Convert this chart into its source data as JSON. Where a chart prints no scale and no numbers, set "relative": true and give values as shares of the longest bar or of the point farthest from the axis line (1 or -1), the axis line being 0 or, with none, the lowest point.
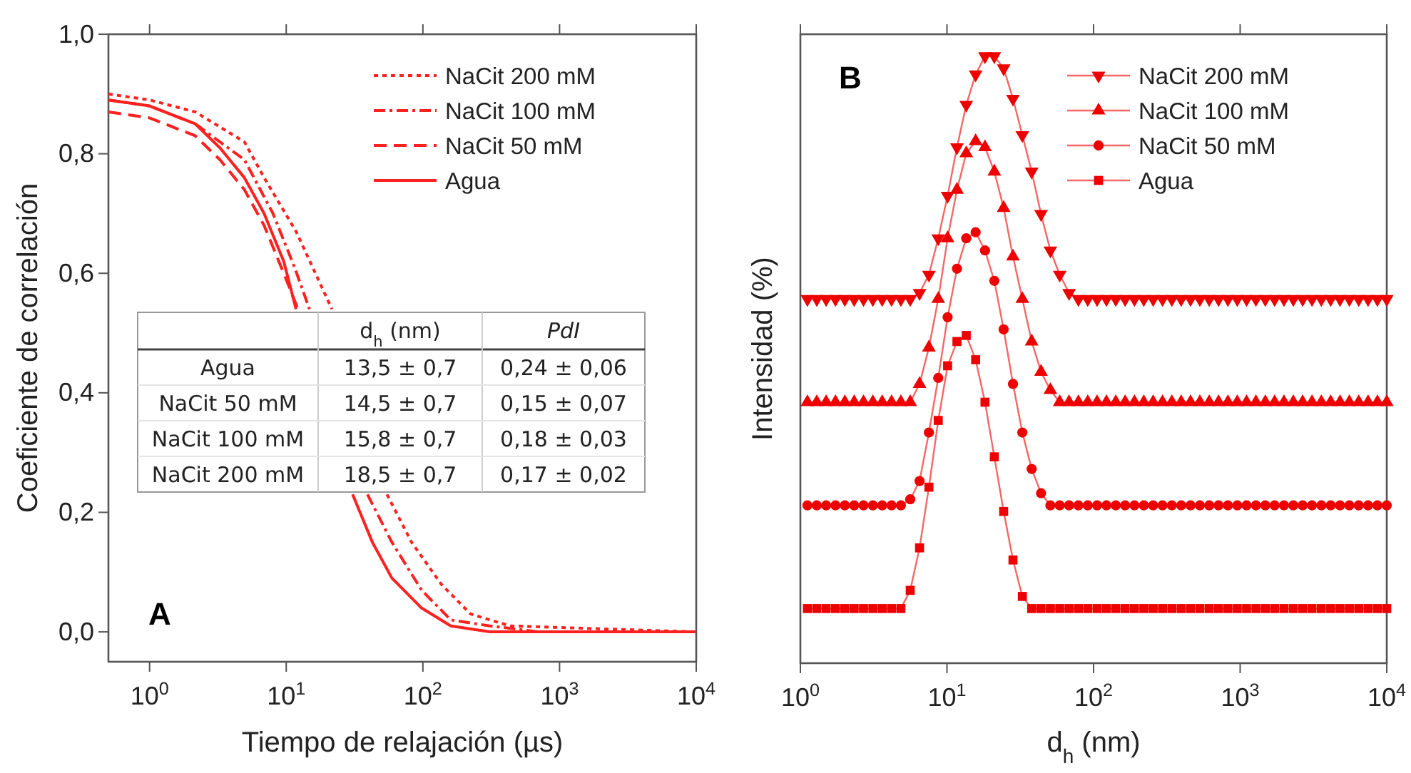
{
  "chart_data": [
    {
      "type": "line",
      "xlabel": "Tiempo de relajación (µs)",
      "ylabel": "Coeficiente de correlación",
      "log": "x",
      "xlim": [
        0.5,
        10000
      ],
      "xticks": [
        {
          "value": 1,
          "label": "10$^{0}$"
        },
        {
          "value": 10,
          "label": "10$^{1}$"
        },
        {
          "value": 100,
          "label": "10$^{2}$"
        },
        {
          "value": 1000,
          "label": "10$^{3}$"
        },
        {
          "value": 10000,
          "label": "10$^{4}$"
        }
      ],
      "ylim": [
        -0.05,
        1.0
      ],
      "yticks": [
        {
          "value": 0,
          "label": "0,0"
        },
        {
          "value": 0.2,
          "label": "0,2"
        },
        {
          "value": 0.4,
          "label": "0,4"
        },
        {
          "value": 0.6,
          "label": "0,6"
        },
        {
          "value": 0.8,
          "label": "0,8"
        },
        {
          "value": 1.0,
          "label": "1,0"
        }
      ],
      "legend": "top right",
      "annotations": [
        "A"
      ],
      "series": [
        {
          "name": "NaCit 200 mM",
          "color": "#ff2020",
          "line_style": "dotted",
          "x": [
            0.5,
            1,
            2.16,
            4.94,
            6.89,
            11.8,
            21.6,
            35,
            54.6,
            82.6,
            136,
            223,
            434,
            10000
          ],
          "values": [
            0.9,
            0.89,
            0.87,
            0.82,
            0.76,
            0.67,
            0.54,
            null,
            0.23,
            0.15,
            0.08,
            0.03,
            0.01,
            0
          ]
        },
        {
          "name": "NaCit 100 mM",
          "color": "#ff2020",
          "line_style": "dashdot",
          "x": [
            0.5,
            1,
            2.16,
            4.94,
            8,
            11.5,
            14.8,
            25,
            39.3,
            59.3,
            97.7,
            160,
            309,
            708,
            10000
          ],
          "values": [
            0.89,
            0.88,
            0.85,
            0.79,
            0.7,
            0.61,
            0.54,
            null,
            0.23,
            0.15,
            0.07,
            0.02,
            0.01,
            0,
            0
          ]
        },
        {
          "name": "NaCit 50 mM",
          "color": "#ff2020",
          "line_style": "dashed",
          "x": [
            0.5,
            1,
            2.16,
            3.27,
            4.94,
            6.89,
            9.59,
            12.2
          ],
          "values": [
            0.87,
            0.86,
            0.83,
            0.79,
            0.74,
            0.68,
            0.6,
            0.54
          ]
        },
        {
          "name": "Agua",
          "color": "#ff2020",
          "line_style": "solid",
          "x": [
            0.5,
            1,
            2.16,
            3.27,
            4.94,
            6.89,
            9.59,
            11.8,
            20,
            30.6,
            42.7,
            59.3,
            97.7,
            160,
            309,
            10000
          ],
          "values": [
            0.89,
            0.88,
            0.85,
            0.81,
            0.76,
            0.7,
            0.62,
            0.54,
            null,
            0.23,
            0.15,
            0.09,
            0.04,
            0.01,
            0,
            0
          ]
        }
      ]
    },
    {
      "type": "line",
      "xlabel": "d$_{h}$ (nm)",
      "ylabel": "Intensidad (%)",
      "relative": true,
      "log": "x",
      "xlim": [
        1,
        10000
      ],
      "xticks": [
        {
          "value": 1,
          "label": "10$^{0}$"
        },
        {
          "value": 10,
          "label": "10$^{1}$"
        },
        {
          "value": 100,
          "label": "10$^{2}$"
        },
        {
          "value": 1000,
          "label": "10$^{3}$"
        },
        {
          "value": 10000,
          "label": "10$^{4}$"
        }
      ],
      "legend": "top right",
      "annotations": [
        "B"
      ],
      "x": [
        1.117,
        1.294,
        1.499,
        1.736,
        2.011,
        2.328,
        2.696,
        3.122,
        3.615,
        4.187,
        4.849,
        5.615,
        6.503,
        7.531,
        8.721,
        10.1,
        11.7,
        13.54,
        15.69,
        18.17,
        21.04,
        24.36,
        28.21,
        32.67,
        37.84,
        43.82,
        50.75,
        58.77,
        68.06,
        78.82,
        91.28,
        105.7,
        122.4,
        141.8,
        164.2,
        190.1,
        220.2,
        255.0,
        295.3,
        342.0,
        396.1,
        458.7,
        531.2,
        615.2,
        712.4,
        825.0,
        955.6,
        1106,
        1281,
        1484,
        1718,
        1990,
        2305,
        2669,
        3091,
        3580,
        4146,
        4801,
        5560,
        6439,
        7457,
        8636,
        10000
      ],
      "series": [
        {
          "name": "NaCit 200 mM",
          "color": "#ee0000",
          "marker": "triangle-down",
          "values": [
            0.6,
            0.6,
            0.6,
            0.6,
            0.6,
            0.6,
            0.6,
            0.6,
            0.6,
            0.6,
            0.6,
            0.6,
            0.61,
            0.64,
            0.7,
            0.77,
            0.85,
            0.92,
            0.97,
            1.0,
            1.0,
            0.98,
            0.93,
            0.87,
            0.81,
            0.74,
            0.68,
            0.64,
            0.61,
            0.6,
            0.6,
            0.6,
            0.6,
            0.6,
            0.6,
            0.6,
            0.6,
            0.6,
            0.6,
            0.6,
            0.6,
            0.6,
            0.6,
            0.6,
            0.6,
            0.6,
            0.6,
            0.6,
            0.6,
            0.6,
            0.6,
            0.6,
            0.6,
            0.6,
            0.6,
            0.6,
            0.6,
            0.6,
            0.6,
            0.6,
            0.6,
            0.6,
            0.6
          ]
        },
        {
          "name": "NaCit 100 mM",
          "color": "#ee0000",
          "marker": "triangle",
          "values": [
            0.43,
            0.43,
            0.43,
            0.43,
            0.43,
            0.43,
            0.43,
            0.43,
            0.43,
            0.43,
            0.43,
            0.43,
            0.46,
            0.52,
            0.6,
            0.7,
            0.78,
            0.84,
            0.86,
            0.85,
            0.81,
            0.75,
            0.67,
            0.6,
            0.53,
            0.48,
            0.45,
            0.43,
            0.43,
            0.43,
            0.43,
            0.43,
            0.43,
            0.43,
            0.43,
            0.43,
            0.43,
            0.43,
            0.43,
            0.43,
            0.43,
            0.43,
            0.43,
            0.43,
            0.43,
            0.43,
            0.43,
            0.43,
            0.43,
            0.43,
            0.43,
            0.43,
            0.43,
            0.43,
            0.43,
            0.43,
            0.43,
            0.43,
            0.43,
            0.43,
            0.43,
            0.43,
            0.43
          ]
        },
        {
          "name": "NaCit 50 mM",
          "color": "#ee0000",
          "marker": "circle",
          "values": [
            0.26,
            0.26,
            0.26,
            0.26,
            0.26,
            0.26,
            0.26,
            0.26,
            0.26,
            0.26,
            0.26,
            0.27,
            0.3,
            0.38,
            0.47,
            0.57,
            0.65,
            0.7,
            0.71,
            0.68,
            0.63,
            0.55,
            0.46,
            0.38,
            0.32,
            0.28,
            0.26,
            0.26,
            0.26,
            0.26,
            0.26,
            0.26,
            0.26,
            0.26,
            0.26,
            0.26,
            0.26,
            0.26,
            0.26,
            0.26,
            0.26,
            0.26,
            0.26,
            0.26,
            0.26,
            0.26,
            0.26,
            0.26,
            0.26,
            0.26,
            0.26,
            0.26,
            0.26,
            0.26,
            0.26,
            0.26,
            0.26,
            0.26,
            0.26,
            0.26,
            0.26,
            0.26,
            0.26
          ]
        },
        {
          "name": "Agua",
          "color": "#ee0000",
          "marker": "square",
          "values": [
            0.09,
            0.09,
            0.09,
            0.09,
            0.09,
            0.09,
            0.09,
            0.09,
            0.09,
            0.09,
            0.09,
            0.12,
            0.19,
            0.29,
            0.4,
            0.49,
            0.53,
            0.54,
            0.5,
            0.43,
            0.34,
            0.25,
            0.17,
            0.11,
            0.09,
            0.09,
            0.09,
            0.09,
            0.09,
            0.09,
            0.09,
            0.09,
            0.09,
            0.09,
            0.09,
            0.09,
            0.09,
            0.09,
            0.09,
            0.09,
            0.09,
            0.09,
            0.09,
            0.09,
            0.09,
            0.09,
            0.09,
            0.09,
            0.09,
            0.09,
            0.09,
            0.09,
            0.09,
            0.09,
            0.09,
            0.09,
            0.09,
            0.09,
            0.09,
            0.09,
            0.09,
            0.09,
            0.09
          ]
        }
      ]
    },
    {
      "type": "other",
      "annotations": [
        "d$_{h}$ (nm)",
        "PdI",
        "Agua",
        "13,5 ± 0,7",
        "0,24 ± 0,06",
        "NaCit 50 mM",
        "14,5 ± 0,7",
        "0,15 ± 0,07",
        "NaCit 100 mM",
        "15,8 ± 0,7",
        "0,18 ± 0,03",
        "NaCit 200 mM",
        "18,5 ± 0,7",
        "0,17 ± 0,02"
      ]
    }
  ]
}
